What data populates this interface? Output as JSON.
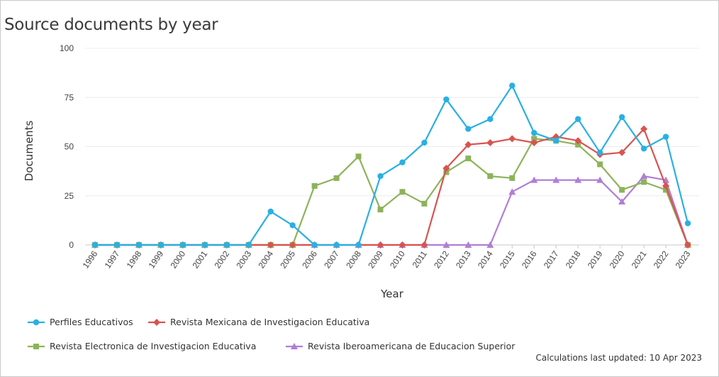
{
  "title": "Source documents by year",
  "footer": {
    "label": "Calculations last updated:",
    "date": "10 Apr 2023"
  },
  "chart_data": {
    "type": "line",
    "title": "Source documents by year",
    "xlabel": "Year",
    "ylabel": "Documents",
    "ylim": [
      0,
      100
    ],
    "yticks": [
      0,
      25,
      50,
      75,
      100
    ],
    "grid": "horizontal",
    "legend_position": "bottom",
    "x": [
      "1996",
      "1997",
      "1998",
      "1999",
      "2000",
      "2001",
      "2002",
      "2003",
      "2004",
      "2005",
      "2006",
      "2007",
      "2008",
      "2009",
      "2010",
      "2011",
      "2012",
      "2013",
      "2014",
      "2015",
      "2016",
      "2017",
      "2018",
      "2019",
      "2020",
      "2021",
      "2022",
      "2023"
    ],
    "series": [
      {
        "name": "Perfiles Educativos",
        "color": "#29b0e3",
        "marker": "circle",
        "values": [
          0,
          0,
          0,
          0,
          0,
          0,
          0,
          0,
          17,
          10,
          0,
          0,
          0,
          35,
          42,
          52,
          74,
          59,
          64,
          81,
          57,
          53,
          64,
          47,
          65,
          49,
          55,
          11
        ]
      },
      {
        "name": "Revista Mexicana de Investigacion Educativa",
        "color": "#d9534f",
        "marker": "diamond",
        "values": [
          0,
          0,
          0,
          0,
          0,
          0,
          0,
          0,
          0,
          0,
          0,
          0,
          0,
          0,
          0,
          0,
          39,
          51,
          52,
          54,
          52,
          55,
          53,
          46,
          47,
          59,
          30,
          0
        ]
      },
      {
        "name": "Revista Electronica de Investigacion Educativa",
        "color": "#8db359",
        "marker": "square",
        "values": [
          0,
          0,
          0,
          0,
          0,
          0,
          0,
          0,
          0,
          0,
          30,
          34,
          45,
          18,
          27,
          21,
          37,
          44,
          35,
          34,
          54,
          53,
          51,
          41,
          28,
          32,
          28,
          0
        ]
      },
      {
        "name": "Revista Iberoamericana de Educacion Superior",
        "color": "#b07ed6",
        "marker": "triangle",
        "values": [
          0,
          0,
          0,
          0,
          0,
          0,
          0,
          0,
          0,
          0,
          0,
          0,
          0,
          0,
          0,
          0,
          0,
          0,
          0,
          27,
          33,
          33,
          33,
          33,
          22,
          35,
          33,
          0
        ]
      }
    ]
  }
}
